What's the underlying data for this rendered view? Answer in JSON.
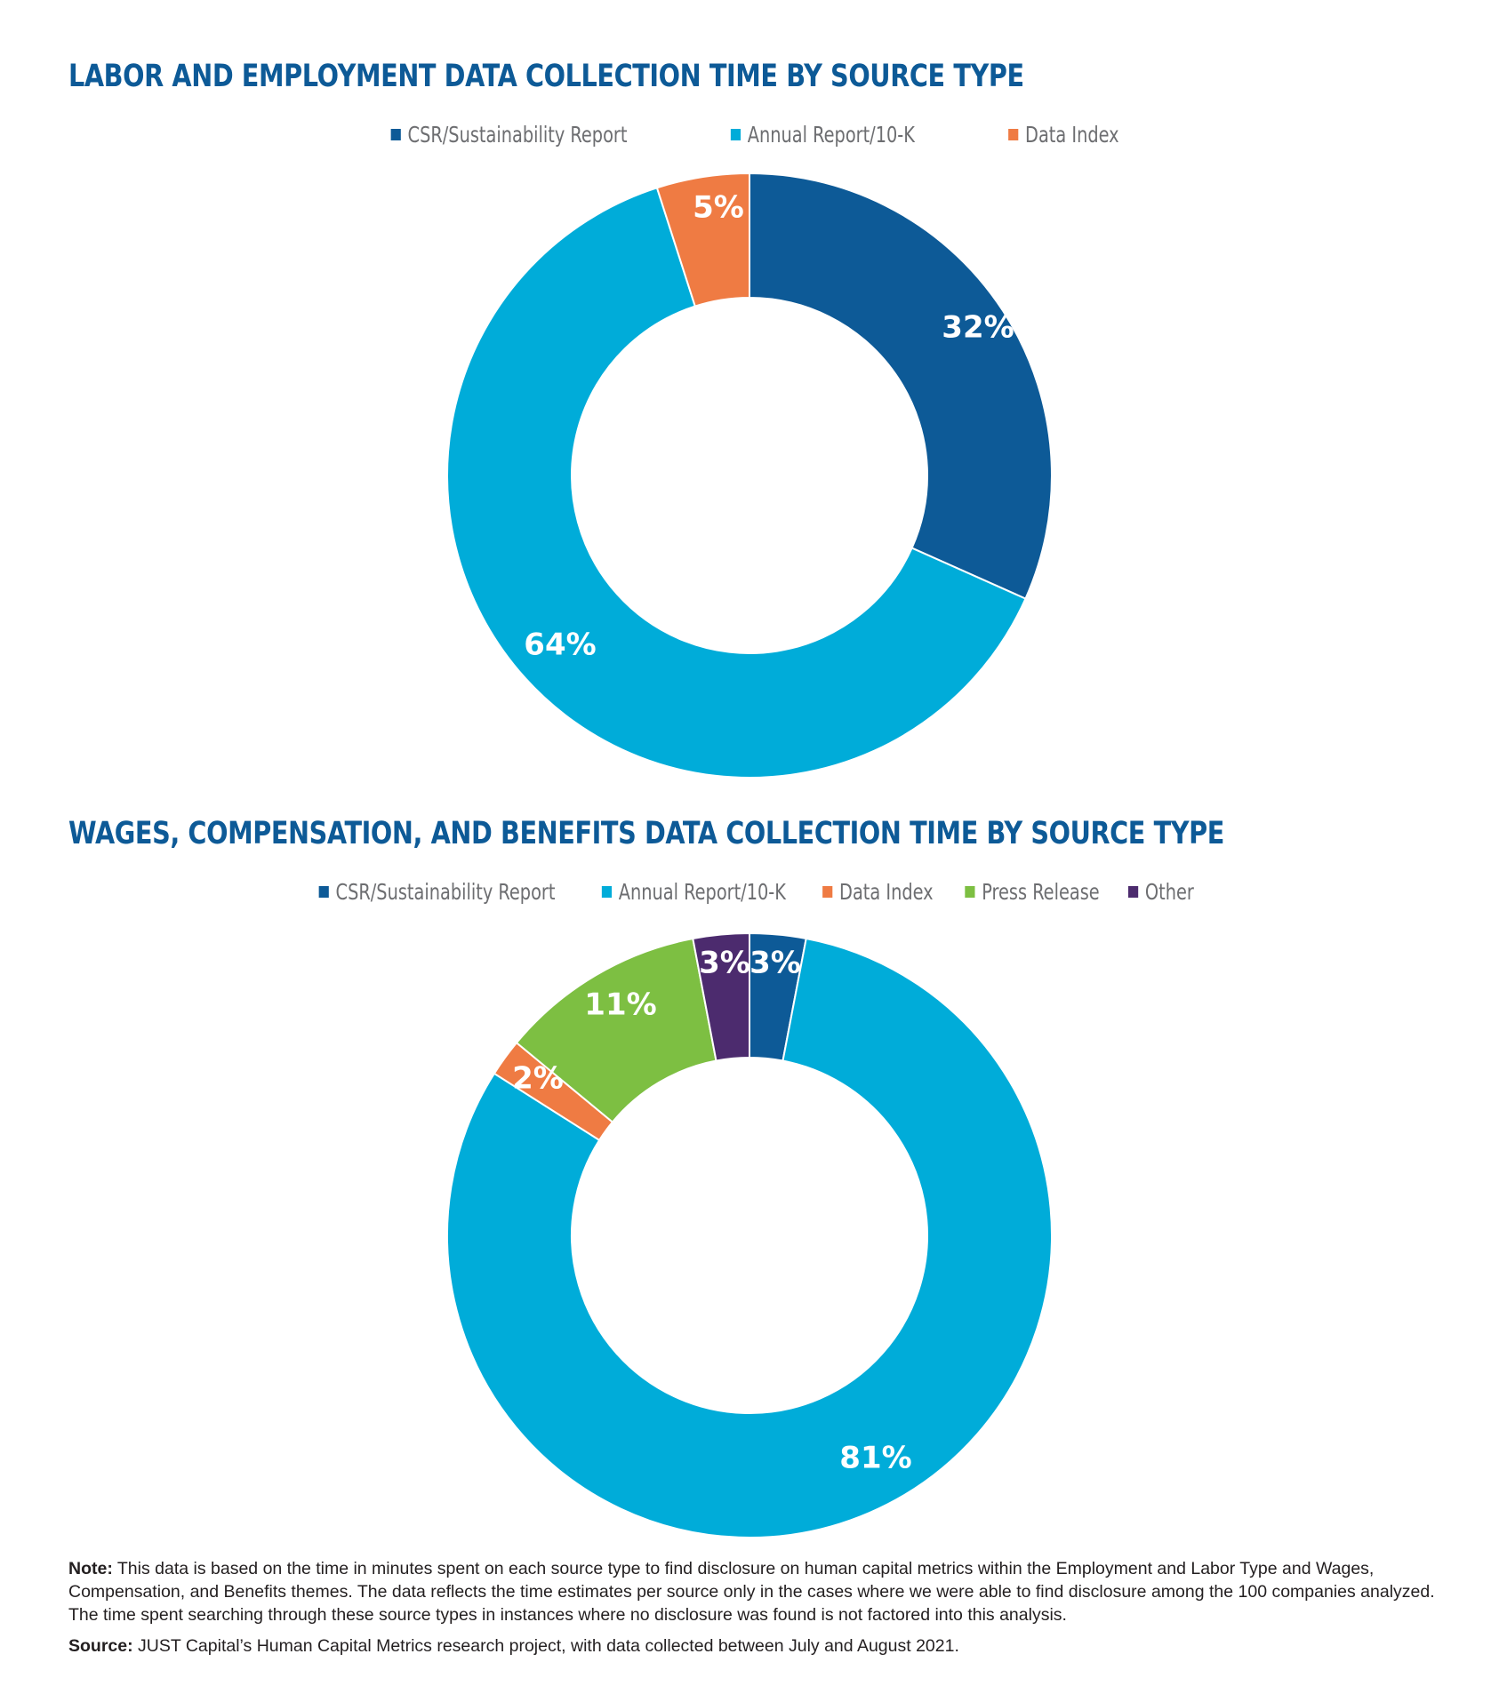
{
  "chart_data": [
    {
      "type": "pie",
      "title": "LABOR AND EMPLOYMENT DATA COLLECTION TIME BY SOURCE TYPE",
      "legend": "top",
      "categories": [
        "CSR/Sustainability Report",
        "Annual Report/10-K",
        "Data Index"
      ],
      "values": [
        32,
        64,
        5
      ],
      "labels": [
        "32%",
        "64%",
        "5%"
      ],
      "colors": [
        "#0d5a97",
        "#00acd9",
        "#ef7b43"
      ]
    },
    {
      "type": "pie",
      "title": "WAGES, COMPENSATION, AND BENEFITS DATA COLLECTION TIME BY SOURCE TYPE",
      "legend": "top",
      "categories": [
        "CSR/Sustainability Report",
        "Annual Report/10-K",
        "Data Index",
        "Press Release",
        "Other"
      ],
      "values": [
        3,
        81,
        2,
        11,
        3
      ],
      "labels": [
        "3%",
        "81%",
        "2%",
        "11%",
        "3%"
      ],
      "colors": [
        "#0d5a97",
        "#00acd9",
        "#ef7b43",
        "#7dbf42",
        "#4c2b6e"
      ]
    }
  ],
  "footer": {
    "note_label": "Note:",
    "note_text": " This data is based on the time in minutes spent on each source type to find disclosure on human capital metrics within the Employment and Labor Type and Wages, Compensation, and Benefits themes. The data reflects the time estimates per source only in the cases where we were able to find disclosure among the 100 companies analyzed. The time spent searching through these source types in instances where no disclosure was found is not factored into this analysis.",
    "source_label": "Source:",
    "source_text": " JUST Capital’s Human Capital Metrics research project, with data collected between July and August 2021."
  }
}
